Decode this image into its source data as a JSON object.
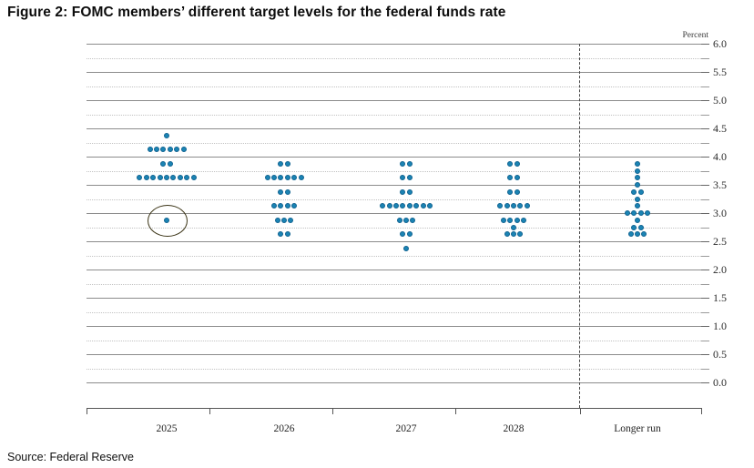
{
  "title": "Figure 2: FOMC members’ different target levels for the federal funds rate",
  "source": "Source: Federal Reserve",
  "chart_data": {
    "type": "scatter",
    "subtype": "fomc-dot-plot",
    "unit_label": "Percent",
    "ylim": [
      0.0,
      6.0
    ],
    "y_major_step": 0.5,
    "y_minor_step": 0.25,
    "y_tick_labels": [
      "6.0",
      "5.5",
      "5.0",
      "4.5",
      "4.0",
      "3.5",
      "3.0",
      "2.5",
      "2.0",
      "1.5",
      "1.0",
      "0.5",
      "0.0"
    ],
    "grid": true,
    "legend_position": "none",
    "categories": [
      "2025",
      "2026",
      "2027",
      "2028",
      "Longer run"
    ],
    "series": [
      {
        "name": "2025",
        "dots": [
          {
            "value": 4.375,
            "count": 1
          },
          {
            "value": 4.125,
            "count": 6
          },
          {
            "value": 3.875,
            "count": 2
          },
          {
            "value": 3.625,
            "count": 9
          },
          {
            "value": 2.875,
            "count": 1
          }
        ]
      },
      {
        "name": "2026",
        "dots": [
          {
            "value": 3.875,
            "count": 2
          },
          {
            "value": 3.625,
            "count": 6
          },
          {
            "value": 3.375,
            "count": 2
          },
          {
            "value": 3.125,
            "count": 4
          },
          {
            "value": 2.875,
            "count": 3
          },
          {
            "value": 2.625,
            "count": 2
          }
        ]
      },
      {
        "name": "2027",
        "dots": [
          {
            "value": 3.875,
            "count": 2
          },
          {
            "value": 3.625,
            "count": 2
          },
          {
            "value": 3.375,
            "count": 2
          },
          {
            "value": 3.125,
            "count": 8
          },
          {
            "value": 2.875,
            "count": 3
          },
          {
            "value": 2.625,
            "count": 2
          },
          {
            "value": 2.375,
            "count": 1
          }
        ]
      },
      {
        "name": "2028",
        "dots": [
          {
            "value": 3.875,
            "count": 2
          },
          {
            "value": 3.625,
            "count": 2
          },
          {
            "value": 3.375,
            "count": 2
          },
          {
            "value": 3.125,
            "count": 5
          },
          {
            "value": 2.875,
            "count": 4
          },
          {
            "value": 2.75,
            "count": 1
          },
          {
            "value": 2.625,
            "count": 3
          }
        ]
      },
      {
        "name": "Longer run",
        "dots": [
          {
            "value": 3.875,
            "count": 1
          },
          {
            "value": 3.75,
            "count": 1
          },
          {
            "value": 3.625,
            "count": 1
          },
          {
            "value": 3.5,
            "count": 1
          },
          {
            "value": 3.375,
            "count": 2
          },
          {
            "value": 3.25,
            "count": 1
          },
          {
            "value": 3.125,
            "count": 1
          },
          {
            "value": 3.0,
            "count": 4
          },
          {
            "value": 2.875,
            "count": 1
          },
          {
            "value": 2.75,
            "count": 2
          },
          {
            "value": 2.625,
            "count": 3
          }
        ]
      }
    ],
    "annotation": {
      "shape": "ellipse",
      "series": "2025",
      "value": 2.875
    },
    "colors": {
      "dot": "#1b84b4",
      "dot_border": "#0f6290",
      "annotation_ring": "#3c3517",
      "gridline_major": "#8c8c8c",
      "gridline_minor": "#c2c2c2",
      "axis": "#555555",
      "text": "#222222"
    }
  }
}
